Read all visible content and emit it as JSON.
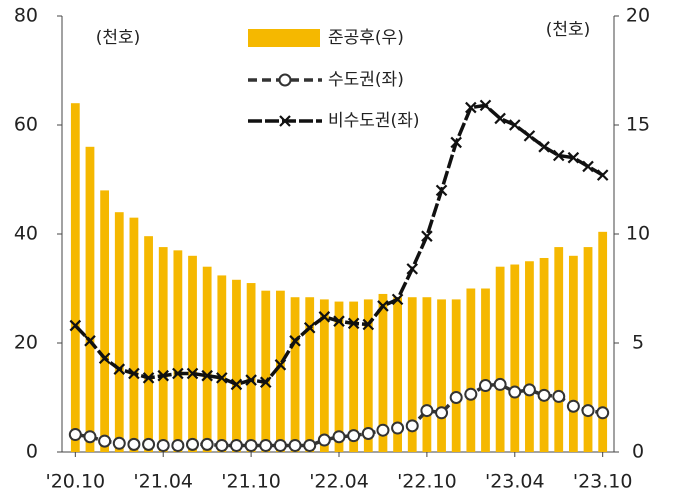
{
  "chart_data": {
    "type": "bar-line",
    "annotations": [
      "(천호)",
      "(천호)"
    ],
    "categories": [
      "'20.10",
      null,
      null,
      null,
      null,
      null,
      "'21.04",
      null,
      null,
      null,
      null,
      null,
      "'21.10",
      null,
      null,
      null,
      null,
      null,
      "'22.04",
      null,
      null,
      null,
      null,
      null,
      "'22.10",
      null,
      null,
      null,
      null,
      null,
      "'23.04",
      null,
      null,
      null,
      null,
      null,
      "'23.10"
    ],
    "series": [
      {
        "name": "준공후(우)",
        "type": "bar",
        "axis": "y2",
        "color": "#f5b800",
        "values": [
          16,
          14,
          12,
          11,
          10.75,
          9.9,
          9.4,
          9.25,
          9,
          8.5,
          8.1,
          7.9,
          7.75,
          7.4,
          7.4,
          7.1,
          7.1,
          7,
          6.9,
          6.9,
          7,
          7.25,
          7.1,
          7.1,
          7.1,
          7,
          7,
          7.5,
          7.5,
          8.5,
          8.6,
          8.75,
          8.9,
          9.4,
          9,
          9.4,
          10.1
        ]
      },
      {
        "name": "수도권(좌)",
        "type": "line",
        "marker": "circle",
        "dashed": true,
        "color": "#333333",
        "values": [
          3.2,
          2.8,
          2,
          1.6,
          1.4,
          1.4,
          1.2,
          1.2,
          1.4,
          1.4,
          1.2,
          1.2,
          1.2,
          1.2,
          1.2,
          1.2,
          1.2,
          2.2,
          2.8,
          3,
          3.4,
          4,
          4.4,
          4.8,
          7.6,
          7.2,
          10,
          10.6,
          12.2,
          12.4,
          11,
          11.4,
          10.4,
          10.2,
          8.4,
          7.6,
          7.2
        ]
      },
      {
        "name": "비수도권(좌)",
        "type": "line",
        "marker": "x",
        "dashed": false,
        "color": "#111111",
        "values": [
          23.2,
          20.4,
          17.2,
          15.2,
          14.4,
          13.6,
          14,
          14.4,
          14.4,
          14,
          13.6,
          12.4,
          13.2,
          12.8,
          16,
          20.4,
          22.8,
          24.8,
          24,
          23.6,
          23.4,
          26.8,
          28,
          33.6,
          39.6,
          48,
          56.8,
          63.2,
          63.6,
          61.2,
          60,
          58,
          56,
          54.4,
          54,
          52.4,
          50.8
        ]
      }
    ],
    "ylim": [
      0,
      80
    ],
    "yticks": [
      0,
      20,
      40,
      60,
      80
    ],
    "y2lim": [
      0,
      20
    ],
    "y2ticks": [
      0,
      5,
      10,
      15,
      20
    ]
  }
}
